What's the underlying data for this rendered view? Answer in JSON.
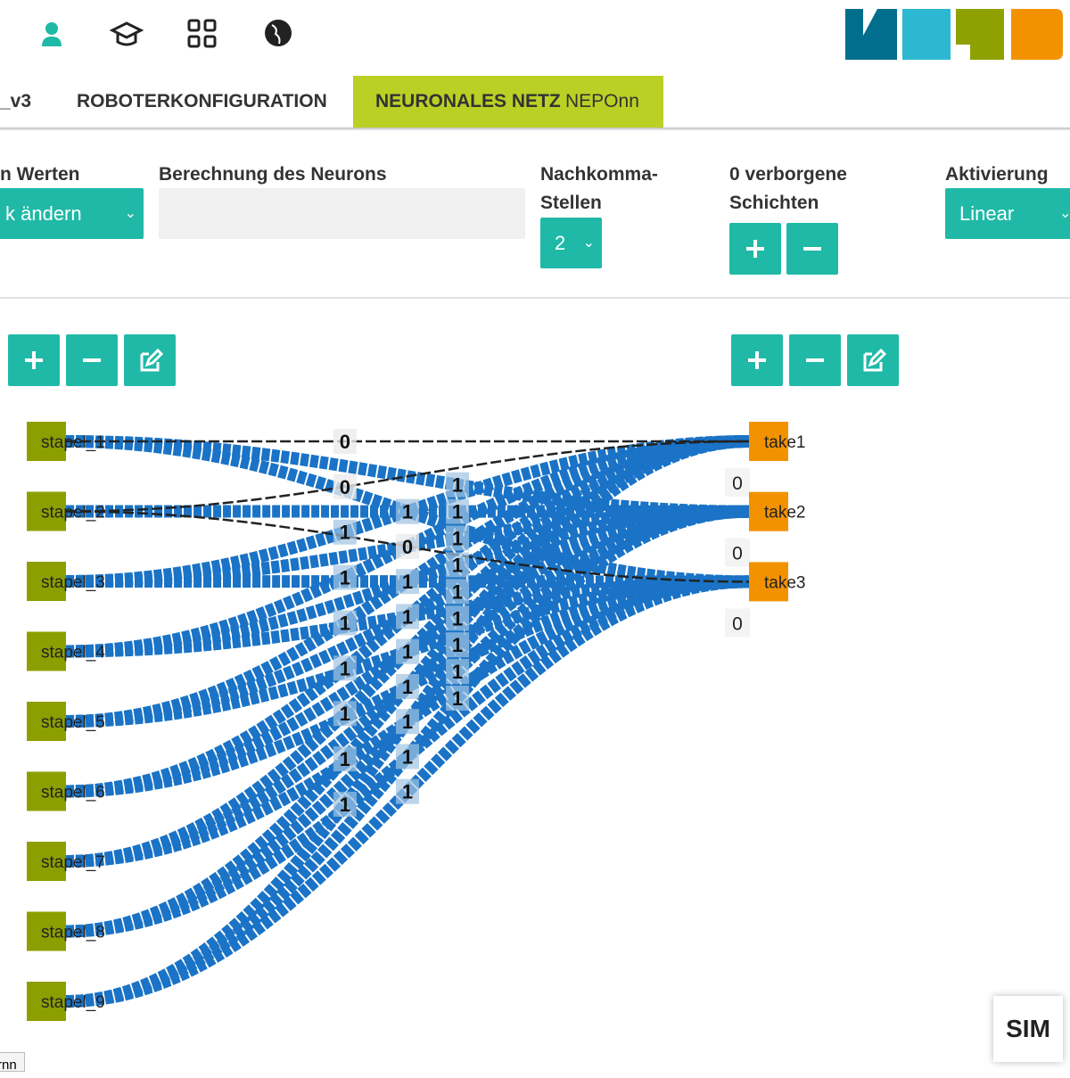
{
  "nav": {
    "tabs": [
      "_v3",
      "ROBOTERKONFIGURATION"
    ],
    "active_tab": {
      "title": "NEURONALES NETZ",
      "subtitle": "NEPOnn"
    }
  },
  "config": {
    "values_label": "n Werten",
    "values_select": "k ändern",
    "formula_label": "Berechnung des Neurons",
    "decimals_label": "Nachkomma-Stellen",
    "decimals_select": "2",
    "hidden_layers_label": "0 verborgene Schichten",
    "activation_label": "Aktivierung",
    "activation_select": "Linear"
  },
  "network": {
    "inputs": [
      "stapel_1",
      "stapel_2",
      "stapel_3",
      "stapel_4",
      "stapel_5",
      "stapel_6",
      "stapel_7",
      "stapel_8",
      "stapel_9"
    ],
    "outputs": [
      "take1",
      "take2",
      "take3"
    ],
    "output_values": [
      0,
      0,
      0
    ],
    "weights": [
      [
        0,
        1,
        1
      ],
      [
        0,
        1,
        0
      ],
      [
        1,
        1,
        1
      ],
      [
        1,
        1,
        1
      ],
      [
        1,
        1,
        1
      ],
      [
        1,
        1,
        1
      ],
      [
        1,
        1,
        1
      ],
      [
        1,
        1,
        1
      ],
      [
        1,
        1,
        1
      ]
    ]
  },
  "sim": "SIM",
  "footer_tab": "rnn"
}
